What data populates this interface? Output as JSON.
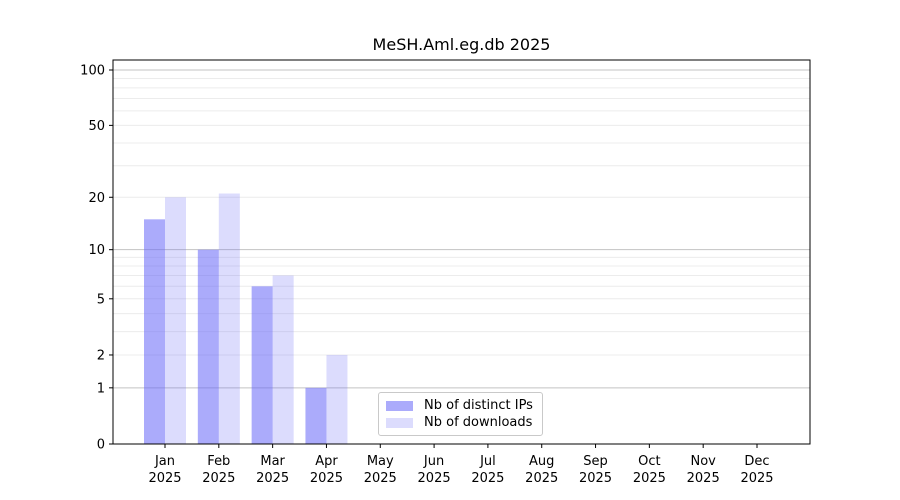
{
  "chart_data": {
    "type": "bar",
    "title": "MeSH.Aml.eg.db 2025",
    "categories": [
      "Jan",
      "Feb",
      "Mar",
      "Apr",
      "May",
      "Jun",
      "Jul",
      "Aug",
      "Sep",
      "Oct",
      "Nov",
      "Dec"
    ],
    "year_label": "2025",
    "series": [
      {
        "name": "Nb of distinct IPs",
        "color": "#6666f7",
        "fill_alpha": 0.55,
        "values": [
          15,
          10,
          6,
          1,
          0,
          0,
          0,
          0,
          0,
          0,
          0,
          0
        ]
      },
      {
        "name": "Nb of downloads",
        "color": "#6666f7",
        "fill_alpha": 0.23,
        "values": [
          20,
          21,
          7,
          2,
          0,
          0,
          0,
          0,
          0,
          0,
          0,
          0
        ]
      }
    ],
    "y_axis": {
      "scale": "log10(1+y)",
      "ticks": [
        0,
        1,
        2,
        5,
        10,
        20,
        50,
        100
      ],
      "major_gridlines": [
        1,
        10,
        100
      ],
      "minor_gridlines": [
        2,
        3,
        4,
        5,
        6,
        7,
        8,
        9,
        20,
        30,
        40,
        50,
        60,
        70,
        80,
        90
      ],
      "ylim": [
        0,
        113
      ]
    },
    "xlabel": "",
    "ylabel": "",
    "grid": true,
    "legend_position": "inside-bottom-center",
    "colors": {
      "major_grid": "#c3c3c3",
      "minor_grid": "#ececec",
      "axis": "#000000"
    }
  }
}
